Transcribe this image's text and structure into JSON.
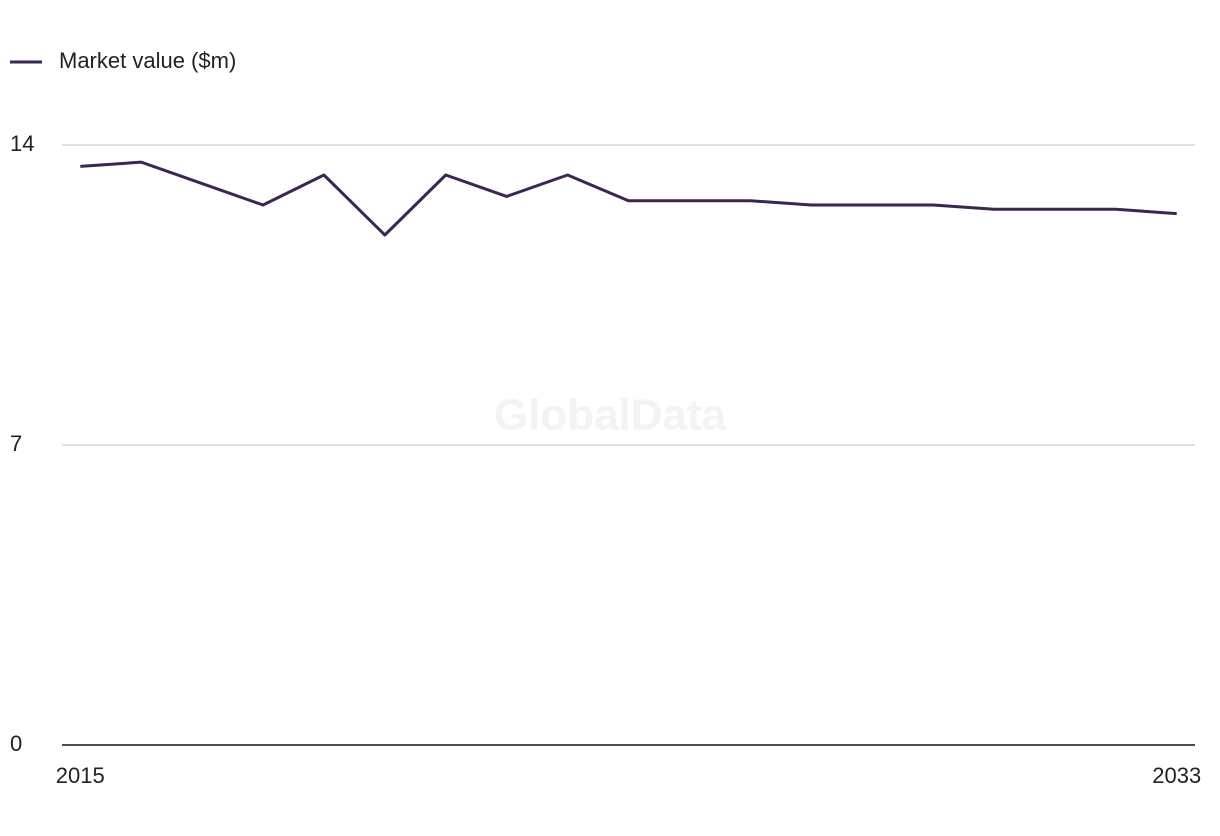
{
  "chart_data": {
    "type": "line",
    "watermark": "GlobalData",
    "x": [
      2015,
      2016,
      2017,
      2018,
      2019,
      2020,
      2021,
      2022,
      2023,
      2024,
      2025,
      2026,
      2027,
      2028,
      2029,
      2030,
      2031,
      2032,
      2033
    ],
    "series": [
      {
        "name": "Market value ($m)",
        "color": "#3a2650",
        "values": [
          13.5,
          13.6,
          13.1,
          12.6,
          13.3,
          11.9,
          13.3,
          12.8,
          13.3,
          12.7,
          12.7,
          12.7,
          12.6,
          12.6,
          12.6,
          12.5,
          12.5,
          12.5,
          12.4
        ]
      }
    ],
    "xlim": [
      2014.7,
      2033.3
    ],
    "xticks": [
      2015,
      2033
    ],
    "ylim": [
      0,
      14
    ],
    "yticks": [
      0,
      7,
      14
    ],
    "grid": true,
    "legend": "top-left"
  }
}
